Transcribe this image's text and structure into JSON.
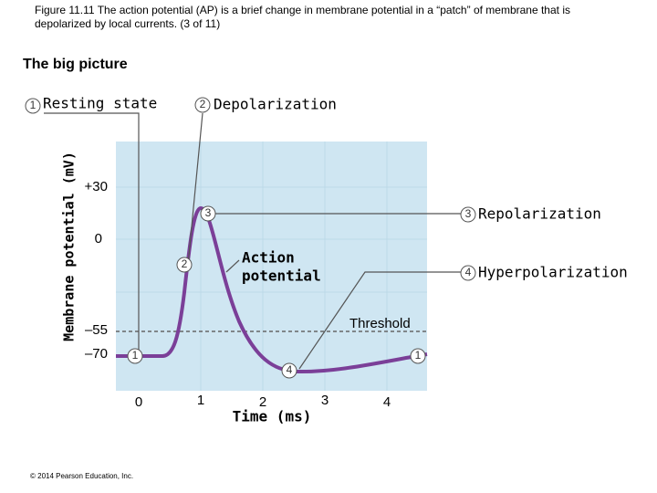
{
  "caption": "Figure 11.11 The action potential (AP) is a brief change in membrane potential in a “patch” of membrane that is depolarized by local currents. (3 of 11)",
  "section_title": "The big picture",
  "y_axis_label": "Membrane potential (mV)",
  "x_axis_label": "Time (ms)",
  "y_ticks": [
    "+30",
    "0",
    "–55",
    "–70"
  ],
  "x_ticks": [
    "0",
    "1",
    "2",
    "3",
    "4"
  ],
  "threshold_label": "Threshold",
  "curve_label": [
    "Action",
    "potential"
  ],
  "steps": [
    {
      "number": "1",
      "label": "Resting state"
    },
    {
      "number": "2",
      "label": "Depolarization"
    },
    {
      "number": "3",
      "label": "Repolarization"
    },
    {
      "number": "4",
      "label": "Hyperpolarization"
    }
  ],
  "curve_markers": [
    "1",
    "2",
    "3",
    "4",
    "1"
  ],
  "copyright": "© 2014 Pearson Education, Inc."
}
